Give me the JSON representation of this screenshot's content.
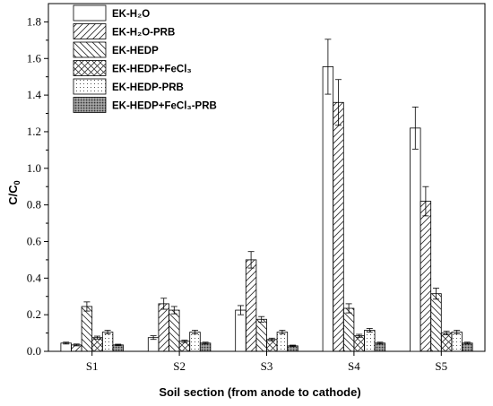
{
  "chart_data": {
    "type": "bar",
    "title": "",
    "xlabel": "Soil section (from anode to cathode)",
    "ylabel": "C/C",
    "ylabel_subscript": "0",
    "ylim": [
      0,
      1.9
    ],
    "yticks": [
      "0.0",
      "0.2",
      "0.4",
      "0.6",
      "0.8",
      "1.0",
      "1.2",
      "1.4",
      "1.6",
      "1.8"
    ],
    "categories": [
      "S1",
      "S2",
      "S3",
      "S4",
      "S5"
    ],
    "grid": false,
    "legend_position": "top-left",
    "error_bars": true,
    "series": [
      {
        "name": "EK-H₂O",
        "pattern": "blank",
        "values": [
          0.045,
          0.075,
          0.225,
          1.555,
          1.22
        ],
        "errors": [
          0.005,
          0.01,
          0.025,
          0.15,
          0.115
        ]
      },
      {
        "name": "EK-H₂O-PRB",
        "pattern": "diag-fwd",
        "values": [
          0.035,
          0.26,
          0.5,
          1.36,
          0.82
        ],
        "errors": [
          0.005,
          0.03,
          0.045,
          0.125,
          0.08
        ]
      },
      {
        "name": "EK-HEDP",
        "pattern": "diag-back",
        "values": [
          0.245,
          0.225,
          0.175,
          0.235,
          0.315
        ],
        "errors": [
          0.025,
          0.02,
          0.015,
          0.025,
          0.03
        ]
      },
      {
        "name": "EK-HEDP+FeCl₃",
        "pattern": "crosshatch",
        "values": [
          0.075,
          0.055,
          0.065,
          0.085,
          0.1
        ],
        "errors": [
          0.008,
          0.006,
          0.007,
          0.008,
          0.01
        ]
      },
      {
        "name": "EK-HEDP-PRB",
        "pattern": "dots",
        "values": [
          0.105,
          0.105,
          0.105,
          0.115,
          0.105
        ],
        "errors": [
          0.01,
          0.01,
          0.01,
          0.01,
          0.01
        ]
      },
      {
        "name": "EK-HEDP+FeCl₃-PRB",
        "pattern": "dense",
        "values": [
          0.035,
          0.045,
          0.03,
          0.045,
          0.045
        ],
        "errors": [
          0.004,
          0.005,
          0.004,
          0.005,
          0.005
        ]
      }
    ]
  }
}
